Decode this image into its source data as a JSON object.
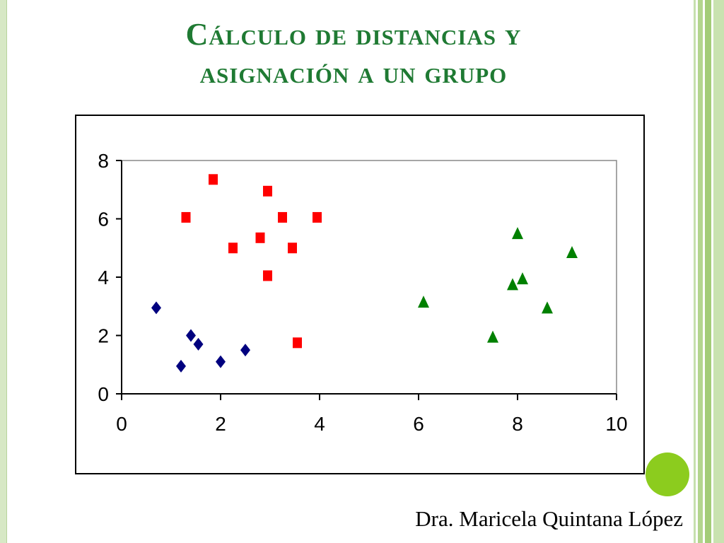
{
  "slide": {
    "title_line1": "Cálculo de distancias y",
    "title_line2": "asignación a un grupo",
    "author": "Dra. Maricela Quintana López",
    "accent_color": "#1f7a33",
    "decor_dot_color": "#8ccc1e"
  },
  "chart_data": {
    "type": "scatter",
    "title": "",
    "xlabel": "",
    "ylabel": "",
    "xlim": [
      0,
      10
    ],
    "ylim": [
      0,
      8
    ],
    "xticks": [
      0,
      2,
      4,
      6,
      8,
      10
    ],
    "yticks": [
      0,
      2,
      4,
      6,
      8
    ],
    "grid": false,
    "legend": "none",
    "series": [
      {
        "marker": "diamond",
        "color": "#00007f",
        "points": [
          [
            0.7,
            2.95
          ],
          [
            1.2,
            0.95
          ],
          [
            1.4,
            2.0
          ],
          [
            1.55,
            1.7
          ],
          [
            2.0,
            1.1
          ],
          [
            2.5,
            1.5
          ]
        ]
      },
      {
        "marker": "square",
        "color": "#ff0000",
        "points": [
          [
            1.3,
            6.05
          ],
          [
            1.85,
            7.35
          ],
          [
            2.25,
            5.0
          ],
          [
            2.8,
            5.35
          ],
          [
            2.95,
            6.95
          ],
          [
            2.95,
            4.05
          ],
          [
            3.25,
            6.05
          ],
          [
            3.45,
            5.0
          ],
          [
            3.55,
            1.75
          ],
          [
            3.95,
            6.05
          ]
        ]
      },
      {
        "marker": "triangle",
        "color": "#008000",
        "points": [
          [
            6.1,
            3.15
          ],
          [
            7.5,
            1.95
          ],
          [
            7.9,
            3.75
          ],
          [
            8.0,
            5.5
          ],
          [
            8.1,
            3.95
          ],
          [
            8.6,
            2.95
          ],
          [
            9.1,
            4.85
          ]
        ]
      }
    ]
  }
}
